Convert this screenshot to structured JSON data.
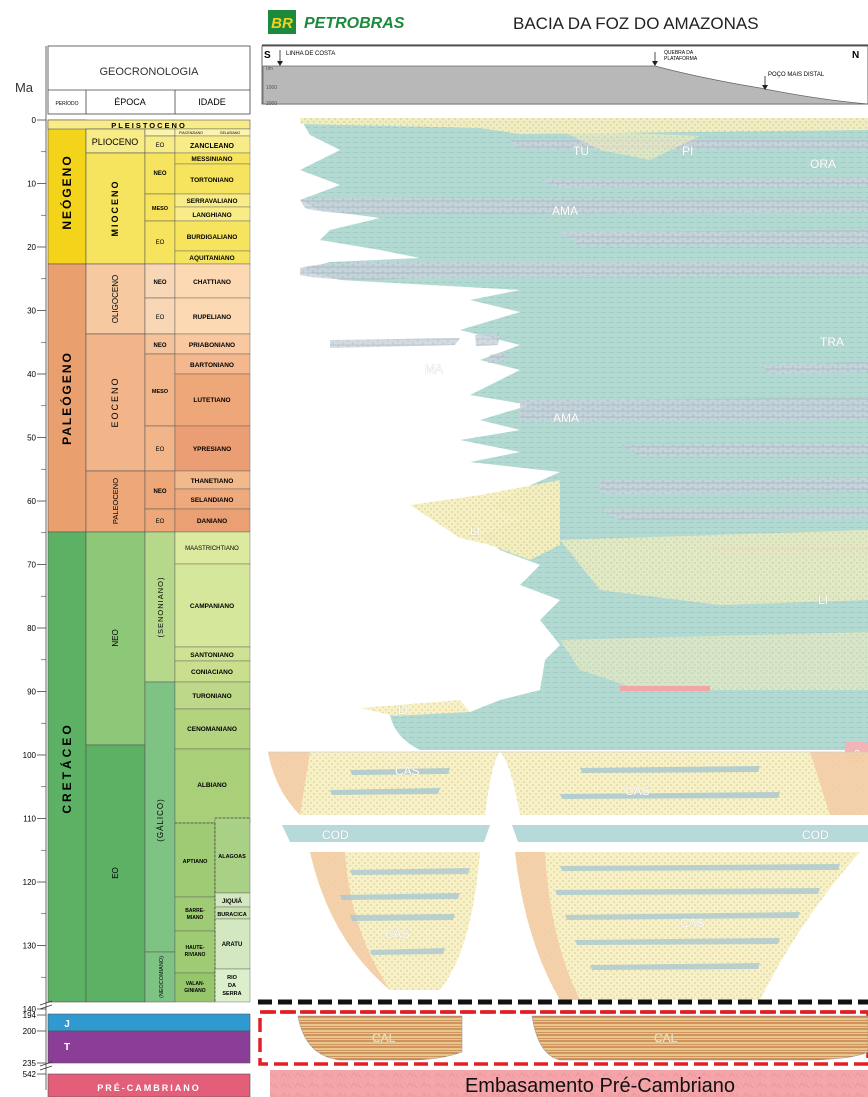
{
  "header": {
    "logo_mark": "BR",
    "logo_text": "PETROBRAS",
    "title": "BACIA DA FOZ DO AMAZONAS",
    "south": "S",
    "north": "N",
    "coast": "LINHA DE COSTA",
    "shelf_break_1": "QUEBRA DA",
    "shelf_break_2": "PLATAFORMA",
    "distal_well": "POÇO MAIS DISTAL",
    "depth_0": "0m",
    "depth_1000": "1000",
    "depth_2000": "2000"
  },
  "table": {
    "ma_label": "Ma",
    "geochronology": "GEOCRONOLOGIA",
    "col_period": "PERÍODO",
    "col_epoch": "ÉPOCA",
    "col_age": "IDADE"
  },
  "scale": {
    "ticks": [
      "0",
      "10",
      "20",
      "30",
      "40",
      "50",
      "60",
      "70",
      "80",
      "90",
      "100",
      "110",
      "120",
      "130",
      "140"
    ],
    "break_ticks": [
      "194",
      "200",
      "235",
      "542"
    ]
  },
  "periods": {
    "neogeno": "NEÓGENO",
    "paleogeno": "PALEÓGENO",
    "cretaceo": "CRETÁCEO",
    "jurassic": "J",
    "triassic": "T",
    "precambrian": "PRÉ-CAMBRIANO"
  },
  "epochs": {
    "pleistoceno": "PLEISTOCENO",
    "plioceno": "PLIOCENO",
    "mioceno": "MIOCENO",
    "oligoceno": "OLIGOCENO",
    "eoceno": "EOCENO",
    "paleoceno": "PALEOCENO",
    "neo": "NEO",
    "eo": "EO",
    "senoniano": "(SENONIANO)",
    "galico": "(GÁLICO)",
    "neocomiano": "(NEOCOMIANO)"
  },
  "sub": {
    "neo": "NEO",
    "meso": "MESO",
    "eo": "EO"
  },
  "ages": {
    "zancleano": "ZANCLEANO",
    "piacenziano": "PIACENZIANO",
    "gelasiano": "GELASIANO",
    "messiniano": "MESSINIANO",
    "tortoniano": "TORTONIANO",
    "serravaliano": "SERRAVALIANO",
    "langhiano": "LANGHIANO",
    "burdigaliano": "BURDIGALIANO",
    "aquitaniano": "AQUITANIANO",
    "chattiano": "CHATTIANO",
    "rupeliano": "RUPELIANO",
    "priaboniano": "PRIABONIANO",
    "bartoniano": "BARTONIANO",
    "lutetiano": "LUTETIANO",
    "ypresiano": "YPRESIANO",
    "thanetiano": "THANETIANO",
    "selandiano": "SELANDIANO",
    "daniano": "DANIANO",
    "maastrichtiano": "MAASTRICHTIANO",
    "campaniano": "CAMPANIANO",
    "santoniano": "SANTONIANO",
    "coniaciano": "CONIACIANO",
    "turoniano": "TURONIANO",
    "cenomaniano": "CENOMANIANO",
    "albiano": "ALBIANO",
    "aptiano": "APTIANO",
    "alagoas": "ALAGOAS",
    "jiquia": "JIQUIÁ",
    "buracica": "BURACICA",
    "barremiano_1": "BARRE-",
    "barremiano_2": "MIANO",
    "aratu": "ARATU",
    "hauteriviano_1": "HAUTE-",
    "hauteriviano_2": "RIVIANO",
    "valanginiano_1": "VALAN-",
    "valanginiano_2": "GINIANO",
    "rio_1": "RIO",
    "rio_2": "DA",
    "rio_3": "SERRA"
  },
  "units": {
    "tu": "TU",
    "pi": "PI",
    "ora": "ORA",
    "ama_1": "AMA",
    "ama_2": "AMA",
    "tra": "TRA",
    "ma": "MA",
    "li_1": "LI",
    "li_2": "LI",
    "li_3": "LI",
    "cas_1": "CAS",
    "cas_2": "CAS",
    "cas_3": "CAS",
    "cas_4": "CAS",
    "cod_1": "COD",
    "cod_2": "COD",
    "cal_1": "CAL",
    "cal_2": "CAL",
    "question": "?"
  },
  "basement": "Embasamento Pré-Cambriano",
  "colors": {
    "neogene": "#f3d41a",
    "neogene_light": "#f8ec88",
    "paleogene": "#ea9f6e",
    "paleogene_light": "#f6c9a1",
    "cretaceous": "#5cb165",
    "cretaceous_light": "#a7d28a",
    "jurassic": "#2e9ad0",
    "triassic": "#8b3e97",
    "precambrian": "#e35e79",
    "marine": "#9ccfc6",
    "sand": "#f7f1c3",
    "shelf": "#b8b8b8",
    "red_dash": "#e31e24"
  }
}
